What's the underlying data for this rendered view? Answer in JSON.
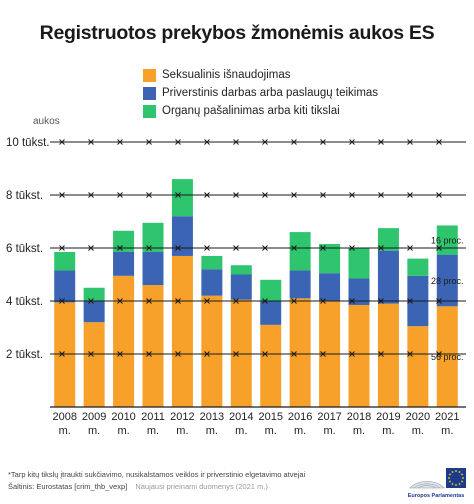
{
  "title": "Registruotos prekybos žmonėmis aukos ES",
  "legend": [
    {
      "label": "Seksualinis išnaudojimas",
      "color": "#f7a12a"
    },
    {
      "label": "Priverstinis darbas arba paslaugų teikimas",
      "color": "#3b65b4"
    },
    {
      "label": "Organų pašalinimas arba kiti tikslai",
      "color": "#2ec56e"
    }
  ],
  "chart_data": {
    "type": "bar",
    "stacked": true,
    "ylabel": "aukos",
    "ylim": [
      0,
      10000
    ],
    "yticks": [
      {
        "value": 2000,
        "label": "2 tūkst."
      },
      {
        "value": 4000,
        "label": "4 tūkst."
      },
      {
        "value": 6000,
        "label": "6 tūkst."
      },
      {
        "value": 8000,
        "label": "8 tūkst."
      },
      {
        "value": 10000,
        "label": "10 tūkst."
      }
    ],
    "categories": [
      "2008 m.",
      "2009 m.",
      "2010 m.",
      "2011 m.",
      "2012 m.",
      "2013 m.",
      "2014 m.",
      "2015 m.",
      "2016 m.",
      "2017 m.",
      "2018 m.",
      "2019 m.",
      "2020 m.",
      "2021 m."
    ],
    "series": [
      {
        "name": "Seksualinis išnaudojimas",
        "color": "#f7a12a",
        "values": [
          3950,
          3200,
          4950,
          4600,
          5700,
          4200,
          4050,
          3100,
          4100,
          4000,
          3850,
          3900,
          3050,
          3800
        ]
      },
      {
        "name": "Priverstinis darbas arba paslaugų teikimas",
        "color": "#3b65b4",
        "values": [
          1200,
          800,
          900,
          1250,
          1500,
          1000,
          950,
          900,
          1050,
          1050,
          1000,
          2000,
          1900,
          1950
        ]
      },
      {
        "name": "Organų pašalinimas arba kiti tikslai",
        "color": "#2ec56e",
        "values": [
          700,
          500,
          800,
          1100,
          1400,
          500,
          350,
          800,
          1450,
          1100,
          1150,
          850,
          650,
          1100
        ]
      }
    ],
    "annotations": [
      {
        "text": "16 proc.",
        "series": 2
      },
      {
        "text": "28 proc.",
        "series": 1
      },
      {
        "text": "56 proc.",
        "series": 0
      }
    ]
  },
  "footnote": "*Tarp kitų tikslų įtraukti sukčiavimo, nusikalstamos veiklos ir priverstinio elgetavimo atvejai",
  "source": "Šaltinis: Eurostatas [crim_thb_vexp]",
  "source_note": "Naujausi prieinami duomenys (2021 m.)",
  "logo_text": "Europos Parlamentas"
}
